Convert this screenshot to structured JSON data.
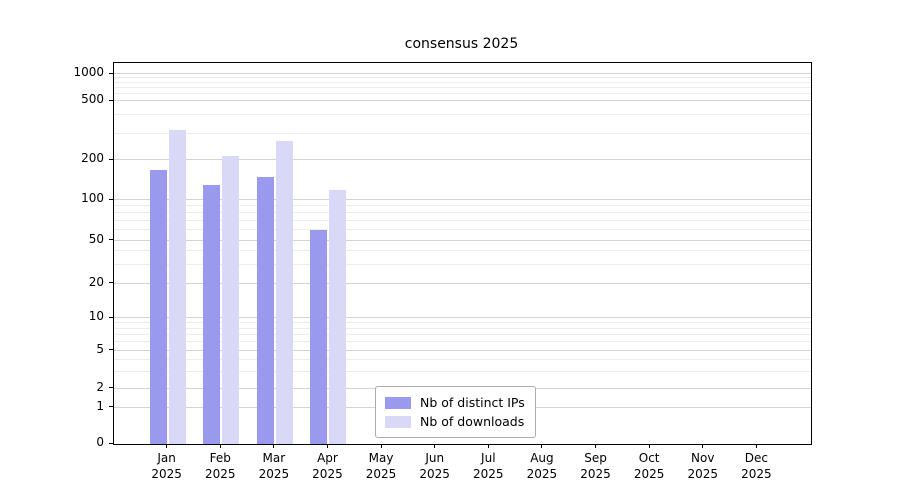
{
  "chart_data": {
    "type": "bar",
    "title": "consensus 2025",
    "categories": [
      "Jan 2025",
      "Feb 2025",
      "Mar 2025",
      "Apr 2025",
      "May 2025",
      "Jun 2025",
      "Jul 2025",
      "Aug 2025",
      "Sep 2025",
      "Oct 2025",
      "Nov 2025",
      "Dec 2025"
    ],
    "series": [
      {
        "name": "Nb of distinct IPs",
        "color": "#9999ee",
        "values": [
          170,
          130,
          150,
          60,
          0,
          0,
          0,
          0,
          0,
          0,
          0,
          0
        ]
      },
      {
        "name": "Nb of downloads",
        "color": "#d9d9f7",
        "values": [
          320,
          215,
          270,
          120,
          0,
          0,
          0,
          0,
          0,
          0,
          0,
          0
        ]
      }
    ],
    "yscale": "log-like",
    "yticks": [
      0,
      1,
      2,
      5,
      10,
      20,
      50,
      100,
      200,
      500,
      1000
    ],
    "ylim": [
      0,
      1500
    ],
    "xlabel": "",
    "ylabel": "",
    "grid": "horizontal",
    "legend_position": "lower center"
  },
  "colors": {
    "grid_major": "#d4d4d4",
    "grid_minor": "#ededed",
    "axis": "#000000",
    "background": "#ffffff"
  }
}
